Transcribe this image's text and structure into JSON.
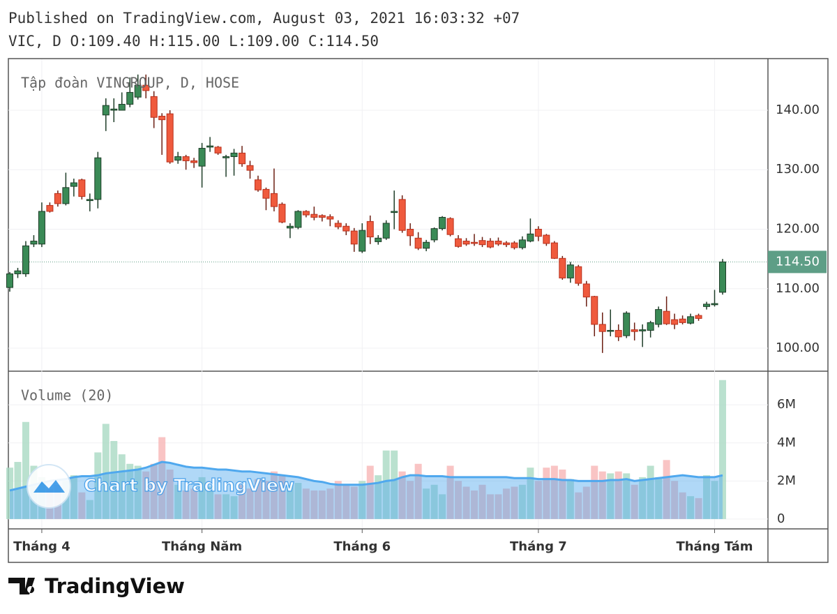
{
  "header": {
    "published": "Published on TradingView.com, August 03, 2021 16:03:32 +07",
    "ohlc": "VIC, D O:109.40 H:115.00 L:109.00 C:114.50"
  },
  "chart_data": {
    "type": "candlestick",
    "legend": "Tập đoàn VINGROUP, D, HOSE",
    "volume_legend": "Volume (20)",
    "watermark": "Chart by TradingView",
    "categories": [
      null,
      null,
      null,
      null,
      "Tháng 4",
      null,
      null,
      null,
      null,
      null,
      null,
      null,
      null,
      null,
      null,
      null,
      null,
      null,
      null,
      null,
      null,
      null,
      null,
      null,
      "Tháng Năm",
      null,
      null,
      null,
      null,
      null,
      null,
      null,
      null,
      null,
      null,
      null,
      null,
      null,
      null,
      null,
      null,
      null,
      null,
      null,
      "Tháng 6",
      null,
      null,
      null,
      null,
      null,
      null,
      null,
      null,
      null,
      null,
      null,
      null,
      null,
      null,
      null,
      null,
      null,
      null,
      null,
      null,
      null,
      "Tháng 7",
      null,
      null,
      null,
      null,
      null,
      null,
      null,
      null,
      null,
      null,
      null,
      null,
      null,
      null,
      null,
      null,
      null,
      null,
      null,
      null,
      null,
      "Tháng Tám",
      null
    ],
    "open": [
      110.2,
      112.5,
      112.5,
      117.5,
      117.5,
      124,
      126,
      124.3,
      127.2,
      128.3,
      124.8,
      125,
      139.2,
      140,
      140,
      141,
      142.2,
      144.2,
      142.3,
      139,
      139.4,
      131.6,
      132.2,
      131.5,
      130.6,
      133.8,
      133.8,
      132,
      132.2,
      132.8,
      130.7,
      128.3,
      126.7,
      126,
      124.2,
      120.2,
      120.3,
      123,
      122.5,
      122.3,
      122.1,
      121,
      120.5,
      119.7,
      116.3,
      121.3,
      117.9,
      118.5,
      122.8,
      125,
      120,
      118.5,
      116.8,
      118.2,
      120.1,
      121.8,
      118.4,
      118,
      117.8,
      118.1,
      118,
      118,
      117.7,
      117.7,
      116.9,
      118,
      120,
      119,
      117.7,
      115.1,
      111.8,
      113.7,
      110.8,
      108.7,
      104,
      102.9,
      103,
      102.1,
      103.1,
      102.9,
      103,
      104,
      106.2,
      104.8,
      104.9,
      104.2,
      105.5,
      107,
      107.3,
      109.4
    ],
    "high": [
      112.8,
      113.5,
      118,
      119,
      124.5,
      124.5,
      126.5,
      129.5,
      128.5,
      128.5,
      126,
      133,
      142,
      142,
      143,
      145.5,
      146,
      146,
      143.2,
      139.5,
      140,
      133,
      132.5,
      132,
      134.5,
      135.5,
      134,
      132.5,
      133.5,
      134,
      131.5,
      129,
      127,
      130.2,
      124.5,
      121,
      123.2,
      123.2,
      123.8,
      122.5,
      122.5,
      121.5,
      121,
      120.2,
      121,
      122.3,
      119,
      121.5,
      126.5,
      125.7,
      121,
      119.5,
      118.2,
      120.3,
      122.2,
      122,
      119,
      118.5,
      119.2,
      118.7,
      118.5,
      118.6,
      118,
      118,
      118.8,
      121.8,
      120.5,
      119.2,
      118,
      115.5,
      114.5,
      114,
      111.3,
      108.8,
      106,
      106.5,
      104,
      106.2,
      104.3,
      104,
      104.6,
      107,
      108.7,
      105.8,
      105.5,
      105.8,
      105.8,
      107.8,
      109.8,
      115
    ],
    "low": [
      109.5,
      111.8,
      112,
      117,
      117,
      122.8,
      123.8,
      124,
      125.5,
      125,
      123,
      123.5,
      136.5,
      138,
      140,
      140.5,
      141.8,
      142,
      137,
      132.5,
      131,
      131,
      130,
      130.3,
      127,
      133,
      132.5,
      128.8,
      129,
      130.5,
      128.5,
      126.3,
      123.2,
      123,
      121,
      118.5,
      120,
      122,
      121.5,
      121.3,
      120.5,
      120,
      119,
      116.2,
      116,
      117.5,
      117.4,
      118.2,
      120,
      119.4,
      117.2,
      116.5,
      116.3,
      117.8,
      119.8,
      118.8,
      116.9,
      117.2,
      117.2,
      117,
      116.8,
      117.2,
      117,
      116.6,
      116.6,
      117.8,
      118,
      117.2,
      115,
      111.5,
      111,
      110.5,
      107,
      102,
      99.2,
      102,
      101.2,
      101.7,
      101.3,
      100.2,
      101.8,
      103.5,
      103.9,
      103.2,
      104,
      104,
      104.6,
      106.5,
      107,
      109
    ],
    "close": [
      112.5,
      113,
      117.2,
      118,
      123,
      123,
      124.3,
      127,
      127.8,
      125.5,
      125,
      132,
      140.8,
      140.2,
      141,
      143,
      144.2,
      143.3,
      138.8,
      138.4,
      131.3,
      132.2,
      131.5,
      131.2,
      133.6,
      134,
      132.8,
      132.2,
      132.8,
      131,
      129.9,
      126.6,
      125.2,
      123.8,
      121.2,
      120.5,
      123,
      122.4,
      122,
      122,
      121.7,
      120.4,
      119.7,
      117.5,
      119.8,
      118.7,
      118.5,
      121,
      123,
      119.8,
      118.9,
      116.8,
      117.8,
      120.1,
      122,
      119.1,
      117.1,
      117.5,
      117.6,
      117.4,
      117,
      117.5,
      117.4,
      116.9,
      118.2,
      119.2,
      118.8,
      117.6,
      115.1,
      111.8,
      114,
      110.9,
      108.6,
      104,
      102.8,
      103,
      101.9,
      105.9,
      102.8,
      103.1,
      104.3,
      106.5,
      104.1,
      104,
      104.3,
      105.3,
      105,
      107.4,
      107.5,
      114.5
    ],
    "ylim": [
      96.25,
      148.56
    ],
    "yticks": [
      {
        "value": 100,
        "label": "100.00"
      },
      {
        "value": 110,
        "label": "110.00"
      },
      {
        "value": 120,
        "label": "120.00"
      },
      {
        "value": 130,
        "label": "130.00"
      },
      {
        "value": 140,
        "label": "140.00"
      }
    ],
    "last_price": {
      "value": 114.5,
      "label": "114.50"
    },
    "volume": [
      2700000,
      3000000,
      5100000,
      2800000,
      2200000,
      1600000,
      1800000,
      2000000,
      2300000,
      1400000,
      1000000,
      3500000,
      5000000,
      4100000,
      3400000,
      2900000,
      2800000,
      2500000,
      2900000,
      4300000,
      2600000,
      1800000,
      1500000,
      1600000,
      2200000,
      1700000,
      1300000,
      1300000,
      1200000,
      1800000,
      1600000,
      2100000,
      2000000,
      2500000,
      2300000,
      1800000,
      1900000,
      1600000,
      1500000,
      1500000,
      1600000,
      2000000,
      1800000,
      1700000,
      2000000,
      2800000,
      2300000,
      3600000,
      3600000,
      2500000,
      2000000,
      2900000,
      1600000,
      1800000,
      1300000,
      2800000,
      2000000,
      1700000,
      1500000,
      1800000,
      1300000,
      1300000,
      1600000,
      1700000,
      1800000,
      2700000,
      2000000,
      2700000,
      2800000,
      2600000,
      2100000,
      1400000,
      1700000,
      2800000,
      2500000,
      2400000,
      2500000,
      2400000,
      1800000,
      2200000,
      2800000,
      2200000,
      3100000,
      2000000,
      1400000,
      1200000,
      1100000,
      2300000,
      2000000,
      7300000
    ],
    "volume_ma": [
      1500000,
      1600000,
      1700000,
      1800000,
      1900000,
      2000000,
      2050000,
      2100000,
      2200000,
      2250000,
      2250000,
      2300000,
      2400000,
      2450000,
      2500000,
      2550000,
      2600000,
      2700000,
      2850000,
      3000000,
      2950000,
      2850000,
      2750000,
      2700000,
      2700000,
      2650000,
      2600000,
      2600000,
      2550000,
      2500000,
      2500000,
      2450000,
      2400000,
      2350000,
      2300000,
      2250000,
      2200000,
      2100000,
      2000000,
      1950000,
      1850000,
      1800000,
      1800000,
      1800000,
      1800000,
      1850000,
      1900000,
      2000000,
      2050000,
      2200000,
      2300000,
      2300000,
      2250000,
      2250000,
      2250000,
      2200000,
      2200000,
      2200000,
      2200000,
      2200000,
      2200000,
      2200000,
      2200000,
      2150000,
      2150000,
      2150000,
      2100000,
      2100000,
      2100000,
      2050000,
      2050000,
      2000000,
      2000000,
      2000000,
      2000000,
      2050000,
      2050000,
      2100000,
      2000000,
      2050000,
      2100000,
      2150000,
      2200000,
      2250000,
      2300000,
      2250000,
      2200000,
      2200000,
      2200000,
      2300000
    ],
    "volume_ylim": [
      -480000,
      7730000
    ],
    "volume_yticks": [
      0,
      {
        "value": 2000000,
        "label": "2M"
      },
      {
        "value": 4000000,
        "label": "4M"
      },
      {
        "value": 6000000,
        "label": "6M"
      }
    ],
    "up_color": "#3a8a56",
    "down_color": "#ef5a3d",
    "ma_color": "#4fa8ee"
  },
  "footer": {
    "brand": "TradingView"
  }
}
